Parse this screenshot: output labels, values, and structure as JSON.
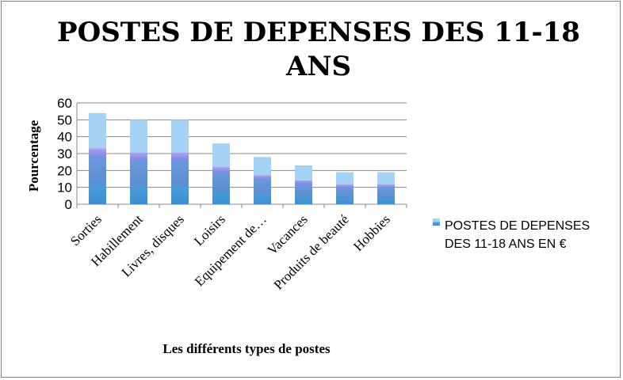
{
  "chart_data": {
    "type": "bar",
    "title": "POSTES DE DEPENSES DES 11-18 ANS",
    "xlabel": "Les différents types de postes",
    "ylabel": "Pourcentage",
    "ylim": [
      0,
      60
    ],
    "yticks": [
      "0",
      "10",
      "20",
      "30",
      "40",
      "50",
      "60"
    ],
    "categories": [
      "Sorties",
      "Habillement",
      "Livres, disques",
      "Loisirs",
      "Equipement de…",
      "Vacances",
      "Produits de beauté",
      "Hobbies"
    ],
    "series": [
      {
        "name": "POSTES DE DEPENSES DES 11-18 ANS EN €",
        "values": [
          54,
          50,
          50,
          36,
          28,
          23,
          19,
          19
        ]
      }
    ],
    "grid": true,
    "legend": "right"
  },
  "colors": {
    "bar_top": "#a6d3f5",
    "bar_band": "#a99bf0",
    "bar_mid": "#5c9ad9",
    "bar_base": "#3a8fd4",
    "gridline": "#8a8a8a",
    "axis": "#8a8a8a"
  }
}
